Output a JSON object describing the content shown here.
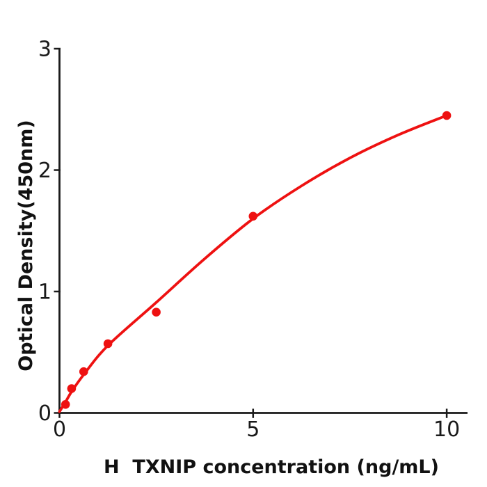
{
  "figure": {
    "background": "#ffffff",
    "axis_color": "#1a1a1a",
    "accent_red": "#ee1111"
  },
  "chart_data": {
    "type": "scatter",
    "title": "",
    "xlabel": "H  TXNIP concentration (ng/mL)",
    "ylabel": "Optical Density(450nm)",
    "xlim": [
      0,
      10.5
    ],
    "ylim": [
      0,
      3
    ],
    "x_ticks": [
      0,
      5,
      10
    ],
    "y_ticks": [
      0,
      1,
      2,
      3
    ],
    "grid": false,
    "legend": "none",
    "series": [
      {
        "name": "standard-data-points",
        "type": "scatter",
        "color": "#ee1111",
        "x": [
          0.156,
          0.3125,
          0.625,
          1.25,
          2.5,
          5,
          10
        ],
        "y": [
          0.07,
          0.2,
          0.34,
          0.57,
          0.83,
          1.62,
          2.45
        ]
      },
      {
        "name": "fitted-curve",
        "type": "line",
        "color": "#ee1111",
        "x": [
          0,
          0.156,
          0.3125,
          0.625,
          1.25,
          2.5,
          3.75,
          5,
          6.25,
          7.5,
          8.75,
          10
        ],
        "y": [
          0.01,
          0.09,
          0.175,
          0.315,
          0.555,
          0.91,
          1.27,
          1.6,
          1.87,
          2.1,
          2.29,
          2.45
        ]
      }
    ]
  }
}
